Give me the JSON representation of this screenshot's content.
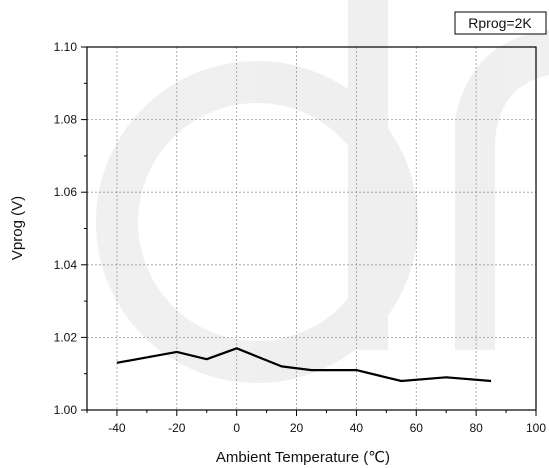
{
  "chart_data": {
    "type": "line",
    "xlabel": "Ambient Temperature (℃)",
    "ylabel": "Vprog (V)",
    "xlim": [
      -50,
      100
    ],
    "ylim": [
      1.0,
      1.1
    ],
    "x_ticks": [
      -40,
      -20,
      0,
      20,
      40,
      60,
      80,
      100
    ],
    "y_ticks": [
      1.0,
      1.02,
      1.04,
      1.06,
      1.08,
      1.1
    ],
    "x_tick_labels": [
      "-40",
      "-20",
      "0",
      "20",
      "40",
      "60",
      "80",
      "100"
    ],
    "y_tick_labels": [
      "1.00",
      "1.02",
      "1.04",
      "1.06",
      "1.08",
      "1.10"
    ],
    "grid": true,
    "legend": {
      "text": "Rprog=2K",
      "placement": "top-right"
    },
    "series": [
      {
        "color": "#000000",
        "x": [
          -40,
          -20,
          -10,
          0,
          15,
          25,
          40,
          55,
          70,
          85
        ],
        "y": [
          1.013,
          1.016,
          1.014,
          1.017,
          1.012,
          1.011,
          1.011,
          1.008,
          1.009,
          1.008
        ]
      }
    ]
  }
}
